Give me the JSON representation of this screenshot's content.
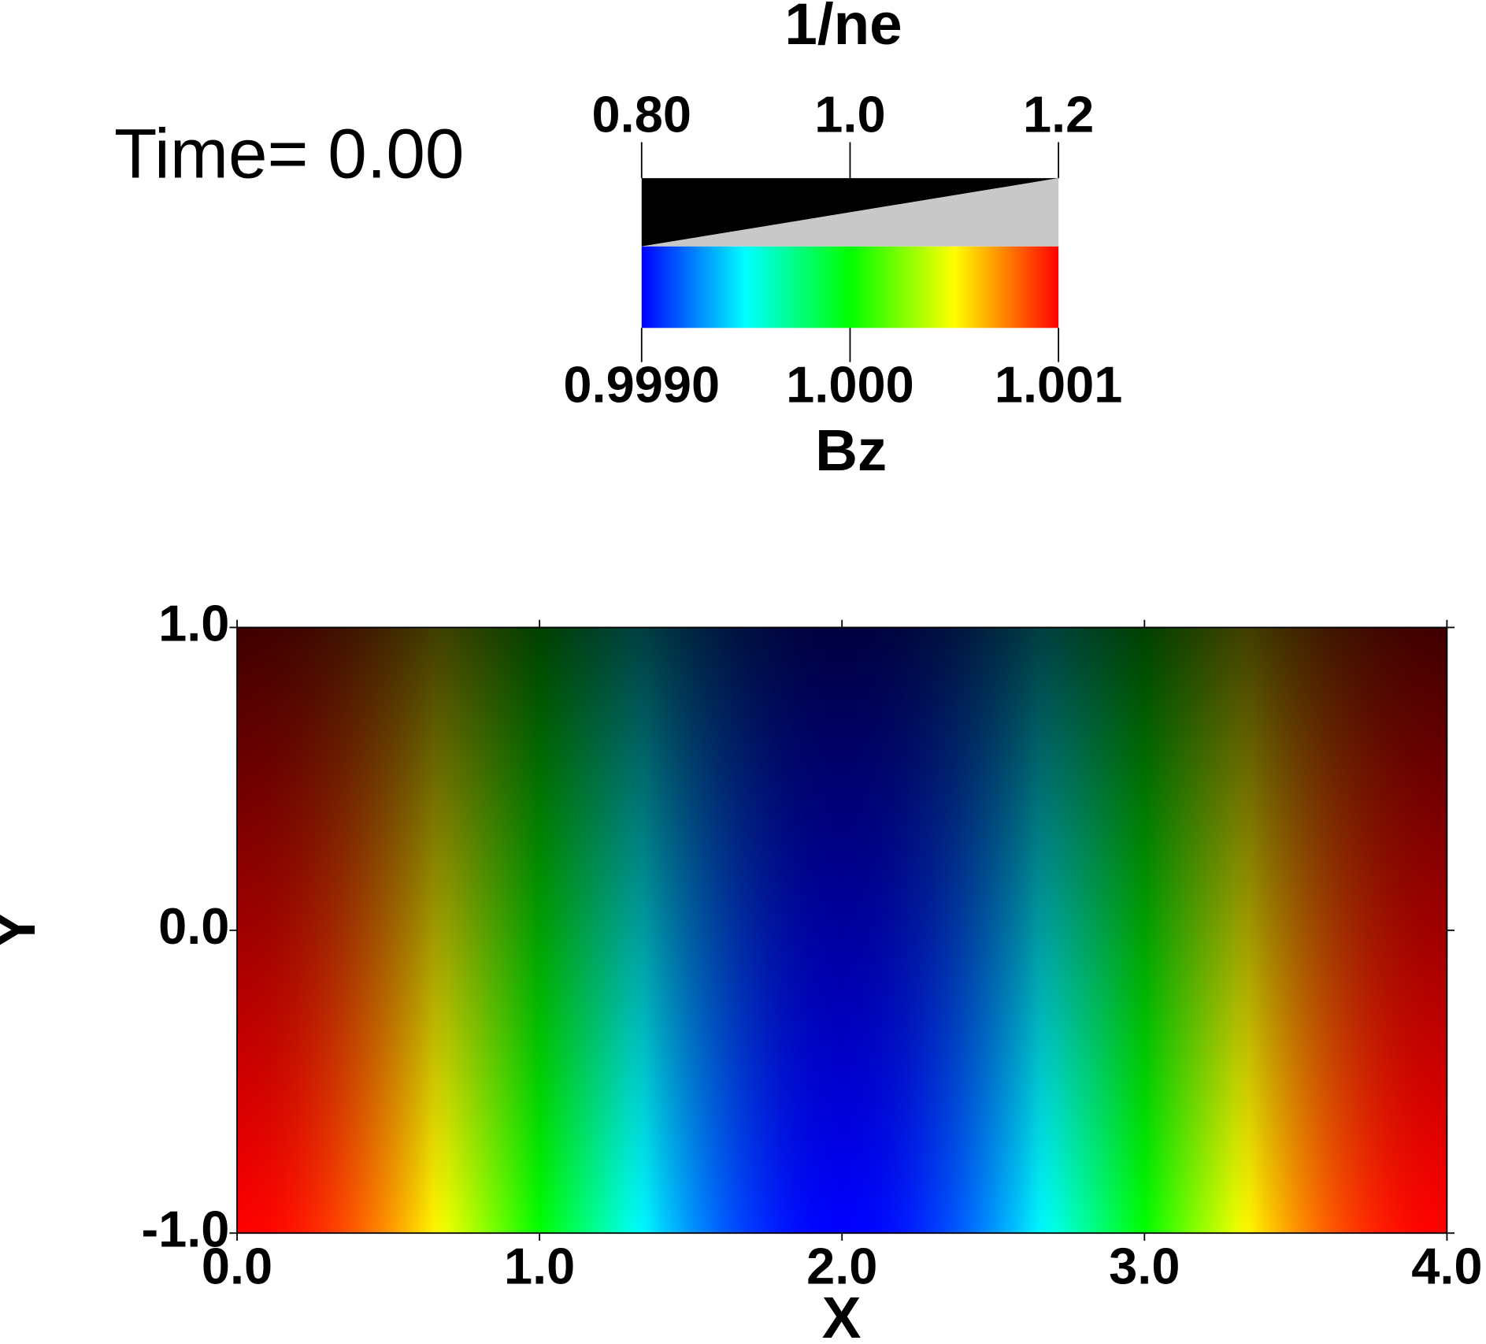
{
  "chart_data": {
    "type": "pseudocolor",
    "annotation": "Time= 0.00",
    "xlabel": "X",
    "ylabel": "Y",
    "xlim": [
      0,
      4
    ],
    "ylim": [
      -1,
      1
    ],
    "xticks": [
      {
        "value": 0,
        "label": "0.0"
      },
      {
        "value": 1,
        "label": "1.0"
      },
      {
        "value": 2,
        "label": "2.0"
      },
      {
        "value": 3,
        "label": "3.0"
      },
      {
        "value": 4,
        "label": "4.0"
      }
    ],
    "yticks": [
      {
        "value": -1,
        "label": "-1.0"
      },
      {
        "value": 0,
        "label": "0.0"
      },
      {
        "value": 1,
        "label": "1.0"
      }
    ],
    "colormap": [
      "#0000ff",
      "#00ffff",
      "#00ff00",
      "#ffff00",
      "#ff0000"
    ],
    "colorbar": {
      "title": "Bz",
      "lim": [
        0.999,
        1.001
      ],
      "ticks": [
        {
          "value": 0.999,
          "label": "0.9990"
        },
        {
          "value": 1,
          "label": "1.000"
        },
        1.001
      ]
    },
    "opacity_bar": {
      "title": "1/ne",
      "lim": [
        0.8,
        1.2
      ],
      "ticks": [
        {
          "value": 0.8,
          "label": "0.80"
        },
        {
          "value": 1,
          "label": "1.0"
        },
        1.2
      ]
    }
  }
}
